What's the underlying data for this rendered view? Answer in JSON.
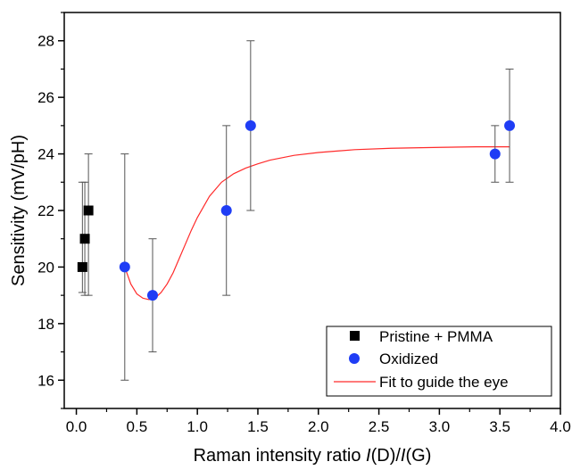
{
  "chart_data": {
    "type": "scatter",
    "xlabel": "Raman intensity ratio I(D)/I(G)",
    "xlabel_parts": {
      "prefix": "Raman intensity ratio ",
      "i1": "I",
      "mid": "(D)/",
      "i2": "I",
      "suffix": "(G)"
    },
    "ylabel": "Sensitivity (mV/pH)",
    "xlim": [
      -0.1,
      4.0
    ],
    "ylim": [
      15,
      29
    ],
    "x_ticks": [
      "0.0",
      "0.5",
      "1.0",
      "1.5",
      "2.0",
      "2.5",
      "3.0",
      "3.5",
      "4.0"
    ],
    "y_ticks": [
      "16",
      "18",
      "20",
      "22",
      "24",
      "26",
      "28"
    ],
    "grid": false,
    "legend_position": "bottom-right",
    "colors": {
      "pristine": "#000000",
      "oxidized": "#1f3df5",
      "fit": "#ff2a2a",
      "errorbar": "#555555"
    },
    "series": [
      {
        "name": "Pristine + PMMA",
        "marker": "square",
        "points": [
          {
            "x": 0.05,
            "y": 20,
            "ymin": 19.1,
            "ymax": 23
          },
          {
            "x": 0.07,
            "y": 21,
            "ymin": 19,
            "ymax": 23
          },
          {
            "x": 0.1,
            "y": 22,
            "ymin": 19,
            "ymax": 24
          }
        ]
      },
      {
        "name": "Oxidized",
        "marker": "circle",
        "points": [
          {
            "x": 0.4,
            "y": 20,
            "ymin": 16,
            "ymax": 24
          },
          {
            "x": 0.63,
            "y": 19,
            "ymin": 17,
            "ymax": 21
          },
          {
            "x": 1.24,
            "y": 22,
            "ymin": 19,
            "ymax": 25
          },
          {
            "x": 1.44,
            "y": 25,
            "ymin": 22,
            "ymax": 28
          },
          {
            "x": 3.46,
            "y": 24,
            "ymin": 23,
            "ymax": 25
          },
          {
            "x": 3.58,
            "y": 25,
            "ymin": 23,
            "ymax": 27
          }
        ]
      },
      {
        "name": "Fit to guide the eye",
        "marker": "line",
        "points": [
          {
            "x": 0.4,
            "y": 20.0
          },
          {
            "x": 0.45,
            "y": 19.4
          },
          {
            "x": 0.5,
            "y": 19.05
          },
          {
            "x": 0.55,
            "y": 18.9
          },
          {
            "x": 0.6,
            "y": 18.85
          },
          {
            "x": 0.65,
            "y": 18.9
          },
          {
            "x": 0.7,
            "y": 19.1
          },
          {
            "x": 0.75,
            "y": 19.4
          },
          {
            "x": 0.8,
            "y": 19.8
          },
          {
            "x": 0.85,
            "y": 20.3
          },
          {
            "x": 0.9,
            "y": 20.8
          },
          {
            "x": 0.95,
            "y": 21.3
          },
          {
            "x": 1.0,
            "y": 21.75
          },
          {
            "x": 1.1,
            "y": 22.5
          },
          {
            "x": 1.2,
            "y": 23.0
          },
          {
            "x": 1.3,
            "y": 23.3
          },
          {
            "x": 1.4,
            "y": 23.5
          },
          {
            "x": 1.5,
            "y": 23.65
          },
          {
            "x": 1.6,
            "y": 23.78
          },
          {
            "x": 1.8,
            "y": 23.95
          },
          {
            "x": 2.0,
            "y": 24.05
          },
          {
            "x": 2.3,
            "y": 24.15
          },
          {
            "x": 2.6,
            "y": 24.2
          },
          {
            "x": 3.0,
            "y": 24.23
          },
          {
            "x": 3.3,
            "y": 24.25
          },
          {
            "x": 3.58,
            "y": 24.25
          }
        ]
      }
    ]
  }
}
